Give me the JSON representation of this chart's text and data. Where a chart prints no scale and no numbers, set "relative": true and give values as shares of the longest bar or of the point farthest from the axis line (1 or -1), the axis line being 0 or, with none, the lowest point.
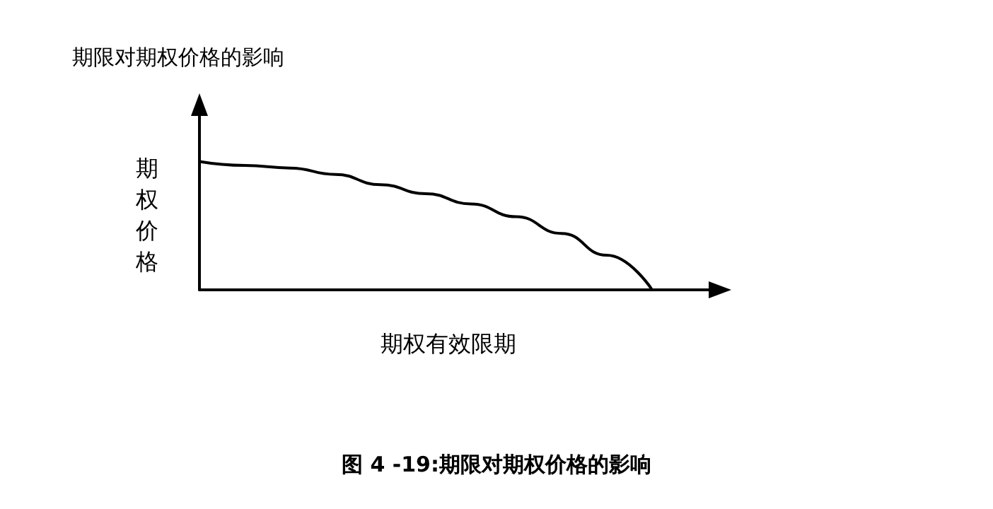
{
  "chart_data": {
    "type": "line",
    "title": "期限对期权价格的影响",
    "xlabel": "期权有效限期",
    "ylabel": "期权价格",
    "annotations": [
      "图 4 -19:期限对期权价格的影响"
    ],
    "relative": true,
    "categories": [
      null,
      null,
      null,
      null,
      null,
      null,
      null,
      null,
      null,
      null,
      null,
      null
    ],
    "series": [
      {
        "color": "#000000",
        "values": [
          1,
          0.97,
          0.95,
          0.9,
          0.82,
          0.75,
          0.67,
          0.57,
          0.44,
          0.27,
          0,
          null
        ]
      }
    ],
    "marker": "none",
    "line_style": "solid",
    "grid": false
  }
}
